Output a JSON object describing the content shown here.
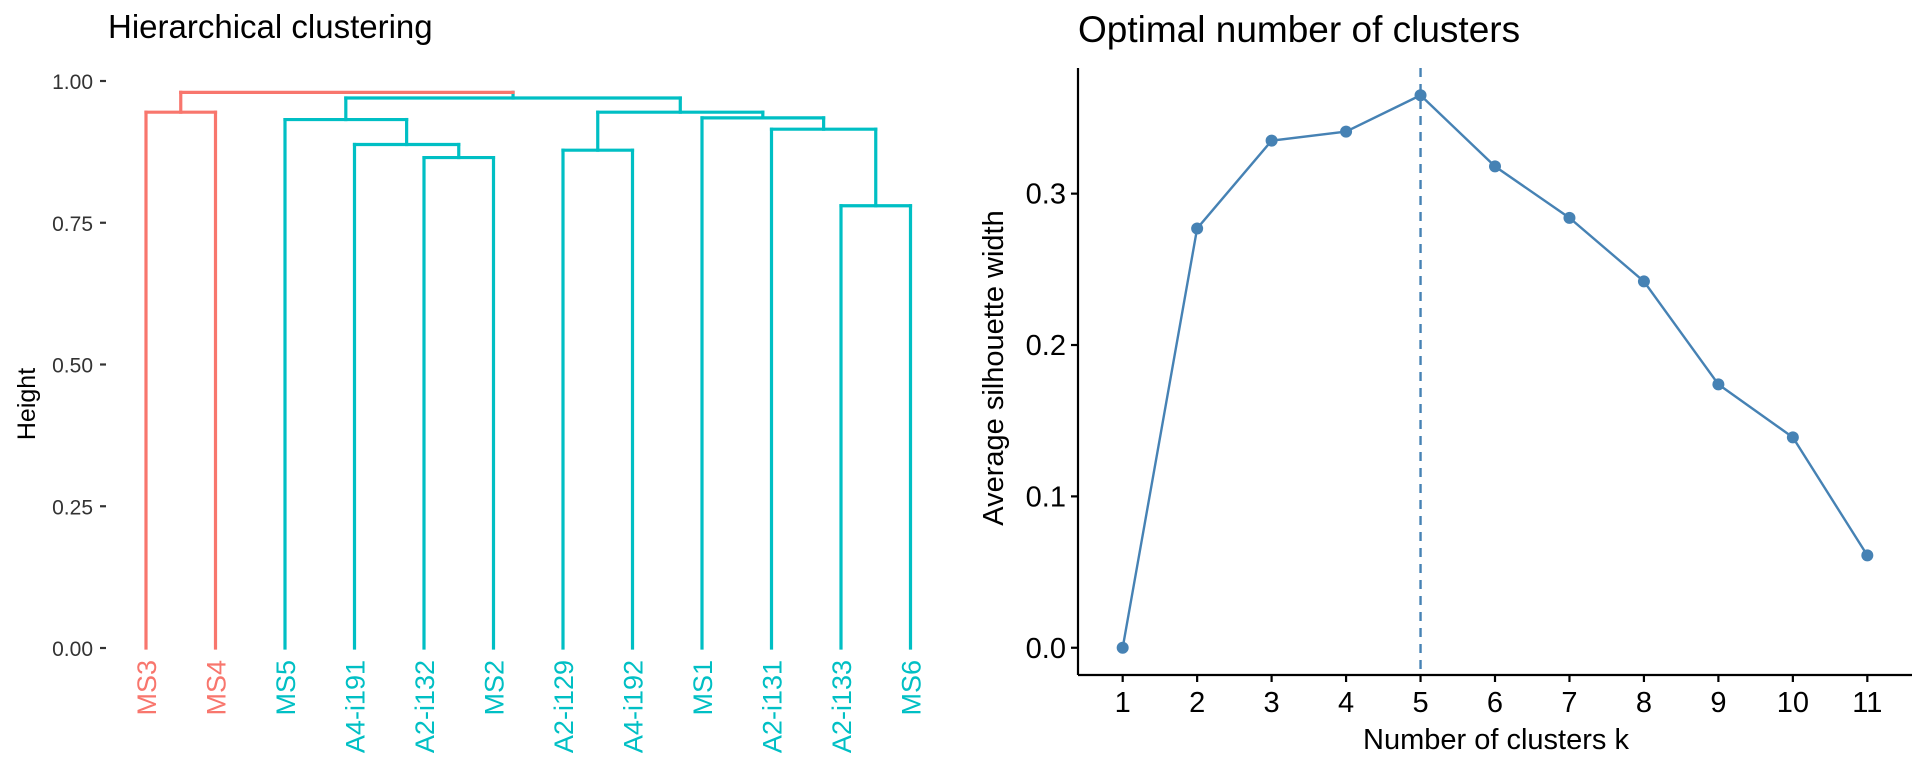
{
  "chart_data": [
    {
      "type": "dendrogram",
      "title": "Hierarchical clustering",
      "ylabel": "Height",
      "ylim": [
        0,
        1
      ],
      "yticks": [
        {
          "value": 0.0,
          "label": "0.00"
        },
        {
          "value": 0.25,
          "label": "0.25"
        },
        {
          "value": 0.5,
          "label": "0.50"
        },
        {
          "value": 0.75,
          "label": "0.75"
        },
        {
          "value": 1.0,
          "label": "1.00"
        }
      ],
      "colors": {
        "cluster1": "#F8766D",
        "cluster2": "#00BFC4"
      },
      "leaves": [
        {
          "label": "MS3",
          "cluster": 1
        },
        {
          "label": "MS4",
          "cluster": 1
        },
        {
          "label": "MS5",
          "cluster": 2
        },
        {
          "label": "A4-i191",
          "cluster": 2
        },
        {
          "label": "A2-i132",
          "cluster": 2
        },
        {
          "label": "MS2",
          "cluster": 2
        },
        {
          "label": "A2-i129",
          "cluster": 2
        },
        {
          "label": "A4-i192",
          "cluster": 2
        },
        {
          "label": "MS1",
          "cluster": 2
        },
        {
          "label": "A2-i131",
          "cluster": 2
        },
        {
          "label": "A2-i133",
          "cluster": 2
        },
        {
          "label": "MS6",
          "cluster": 2
        }
      ],
      "merges": [
        {
          "id": "m1",
          "left": "MS3",
          "right": "MS4",
          "height": 0.945
        },
        {
          "id": "m2",
          "left": "A2-i132",
          "right": "MS2",
          "height": 0.865
        },
        {
          "id": "m3",
          "left": "A4-i191",
          "right": "m2",
          "height": 0.888
        },
        {
          "id": "m4",
          "left": "MS5",
          "right": "m3",
          "height": 0.932
        },
        {
          "id": "m5",
          "left": "A2-i129",
          "right": "A4-i192",
          "height": 0.878
        },
        {
          "id": "m6",
          "left": "A2-i133",
          "right": "MS6",
          "height": 0.78
        },
        {
          "id": "m7",
          "left": "A2-i131",
          "right": "m6",
          "height": 0.915
        },
        {
          "id": "m8",
          "left": "MS1",
          "right": "m7",
          "height": 0.935
        },
        {
          "id": "m9",
          "left": "m5",
          "right": "m8",
          "height": 0.945
        },
        {
          "id": "m10",
          "left": "m4",
          "right": "m9",
          "height": 0.97
        },
        {
          "id": "m11",
          "left": "m1",
          "right": "m10",
          "height": 0.98
        }
      ]
    },
    {
      "type": "line",
      "title": "Optimal number of clusters",
      "xlabel": "Number of clusters k",
      "ylabel": "Average silhouette width",
      "x": [
        1,
        2,
        3,
        4,
        5,
        6,
        7,
        8,
        9,
        10,
        11
      ],
      "y": [
        0.0,
        0.277,
        0.335,
        0.341,
        0.365,
        0.318,
        0.284,
        0.242,
        0.174,
        0.139,
        0.061
      ],
      "xlim": [
        0.4,
        11.6
      ],
      "ylim": [
        -0.018,
        0.383
      ],
      "yticks": [
        {
          "value": 0.0,
          "label": "0.0"
        },
        {
          "value": 0.1,
          "label": "0.1"
        },
        {
          "value": 0.2,
          "label": "0.2"
        },
        {
          "value": 0.3,
          "label": "0.3"
        }
      ],
      "xticks": [
        "1",
        "2",
        "3",
        "4",
        "5",
        "6",
        "7",
        "8",
        "9",
        "10",
        "11"
      ],
      "optimal_k": 5,
      "color": "#4682B4"
    }
  ]
}
